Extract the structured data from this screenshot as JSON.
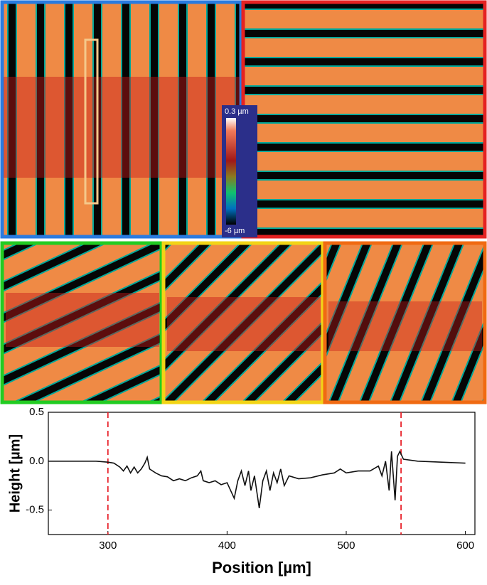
{
  "colorbar": {
    "max_label": "0.3 µm",
    "min_label": "-6 µm"
  },
  "chart_data": {
    "type": "line",
    "xlabel": "Position [µm]",
    "ylabel": "Height [µm]",
    "x": [
      250,
      270,
      290,
      300,
      305,
      310,
      313,
      316,
      319,
      322,
      325,
      328,
      331,
      333,
      335,
      340,
      345,
      350,
      355,
      360,
      365,
      370,
      375,
      378,
      380,
      385,
      390,
      395,
      400,
      403,
      406,
      409,
      412,
      415,
      418,
      420,
      423,
      427,
      430,
      433,
      436,
      439,
      442,
      445,
      448,
      452,
      460,
      470,
      480,
      490,
      495,
      500,
      510,
      520,
      527,
      530,
      533,
      536,
      538,
      541,
      543,
      545,
      548,
      560,
      580,
      600
    ],
    "values": [
      0,
      0,
      0,
      -0.01,
      -0.02,
      -0.06,
      -0.1,
      -0.05,
      -0.12,
      -0.06,
      -0.12,
      -0.08,
      -0.02,
      0.04,
      -0.08,
      -0.12,
      -0.15,
      -0.16,
      -0.2,
      -0.18,
      -0.2,
      -0.17,
      -0.15,
      -0.1,
      -0.2,
      -0.22,
      -0.2,
      -0.24,
      -0.22,
      -0.3,
      -0.38,
      -0.2,
      -0.1,
      -0.25,
      -0.1,
      -0.3,
      -0.15,
      -0.48,
      -0.2,
      -0.1,
      -0.3,
      -0.12,
      -0.22,
      -0.08,
      -0.25,
      -0.15,
      -0.18,
      -0.17,
      -0.14,
      -0.12,
      -0.08,
      -0.12,
      -0.1,
      -0.1,
      -0.05,
      -0.15,
      0,
      -0.3,
      0.1,
      -0.4,
      0.05,
      0.1,
      0.02,
      0,
      -0.01,
      -0.02
    ],
    "color": "#111111",
    "reference_lines": [
      300,
      546
    ],
    "reference_color": "#e8222a",
    "xlim": [
      250,
      608
    ],
    "ylim": [
      -0.75,
      0.5
    ],
    "xticks": [
      300,
      400,
      500,
      600
    ],
    "yticks": [
      -0.5,
      {
        "value": 0,
        "label": "0.0"
      },
      0.5
    ]
  }
}
